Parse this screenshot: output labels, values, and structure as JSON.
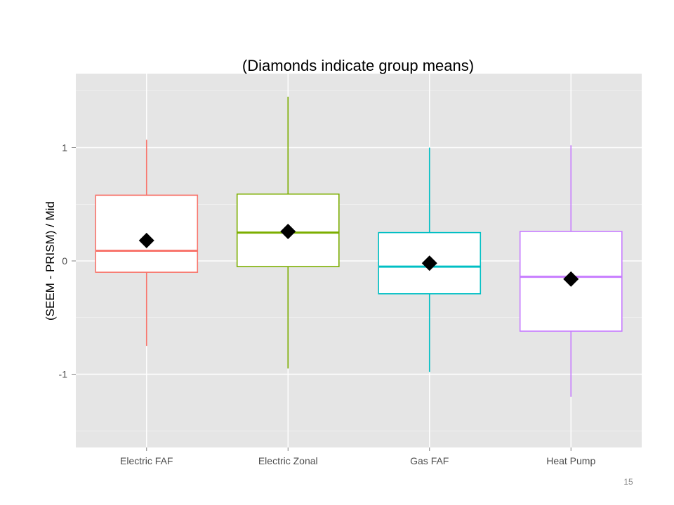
{
  "slide": {
    "page_number": "15"
  },
  "chart_data": {
    "type": "boxplot",
    "title": "(Diamonds indicate group means)",
    "xlabel": "",
    "ylabel": "(SEEM - PRISM) / Mid",
    "ylim": [
      -1.65,
      1.65
    ],
    "yticks": [
      {
        "value": -1,
        "label": "-1"
      },
      {
        "value": 0,
        "label": "0"
      },
      {
        "value": 1,
        "label": "1"
      }
    ],
    "grid": true,
    "legend": "none",
    "mean_marker": "diamond",
    "colors": {
      "panel_background": "#e5e5e5",
      "gridline": "#ffffff",
      "mean_marker": "#000000"
    },
    "categories": [
      "Electric FAF",
      "Electric Zonal",
      "Gas FAF",
      "Heat Pump"
    ],
    "series": [
      {
        "category": "Electric FAF",
        "color": "#f8766d",
        "whisker_low": -0.75,
        "q1": -0.1,
        "median": 0.09,
        "q3": 0.58,
        "whisker_high": 1.07,
        "mean": 0.18
      },
      {
        "category": "Electric Zonal",
        "color": "#7cae00",
        "whisker_low": -0.95,
        "q1": -0.05,
        "median": 0.25,
        "q3": 0.59,
        "whisker_high": 1.45,
        "mean": 0.26
      },
      {
        "category": "Gas FAF",
        "color": "#00bfc4",
        "whisker_low": -0.98,
        "q1": -0.29,
        "median": -0.05,
        "q3": 0.25,
        "whisker_high": 1.0,
        "mean": -0.02
      },
      {
        "category": "Heat Pump",
        "color": "#c77cff",
        "whisker_low": -1.2,
        "q1": -0.62,
        "median": -0.14,
        "q3": 0.26,
        "whisker_high": 1.02,
        "mean": -0.16
      }
    ]
  }
}
